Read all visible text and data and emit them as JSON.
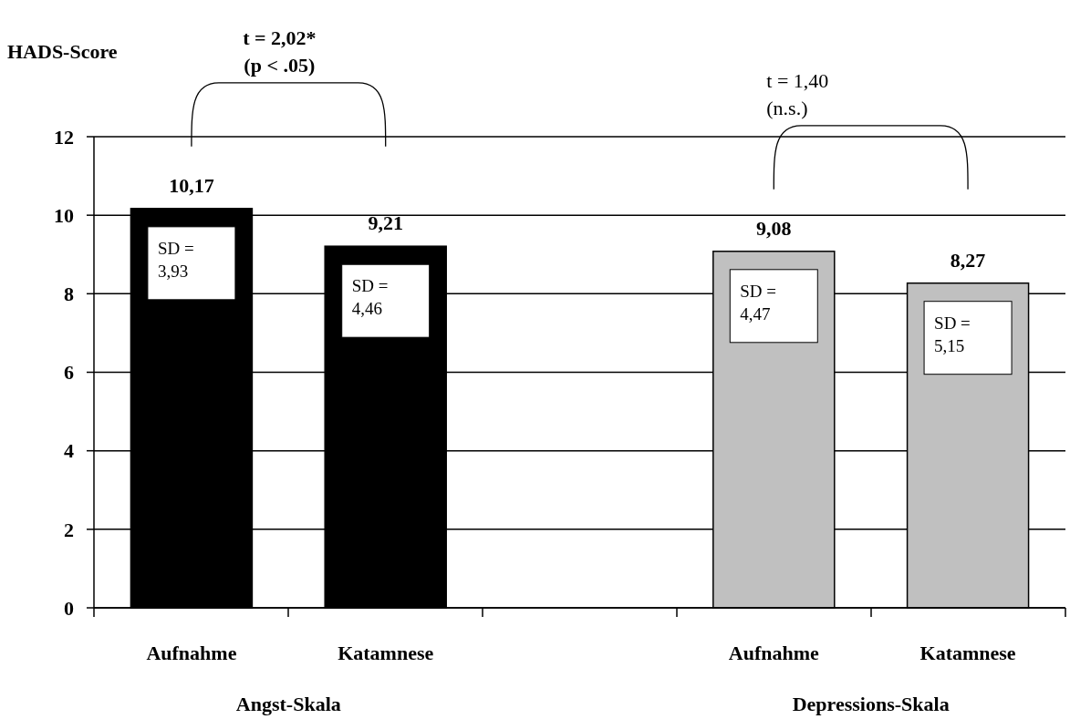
{
  "chart_data": {
    "type": "bar",
    "ylabel": "HADS-Score",
    "categories": [
      "Aufnahme",
      "Katamnese",
      null,
      "Aufnahme",
      "Katamnese"
    ],
    "values": [
      10.17,
      9.21,
      null,
      9.08,
      8.27
    ],
    "colors": [
      "#000000",
      "#000000",
      null,
      "#c0c0c0",
      "#c0c0c0"
    ],
    "value_labels": [
      "10,17",
      "9,21",
      null,
      "9,08",
      "8,27"
    ],
    "ylim": [
      0,
      12
    ],
    "yticks": [
      0,
      2,
      4,
      6,
      8,
      10,
      12
    ],
    "grid": "y",
    "annotations": [
      "SD =\n3,93",
      "SD =\n4,46",
      "SD =\n4,47",
      "SD =\n5,15",
      "t = 2,02*\n(p < .05)",
      "t = 1,40\n(n.s.)",
      "Angst-Skala",
      "Depressions-Skala"
    ]
  }
}
